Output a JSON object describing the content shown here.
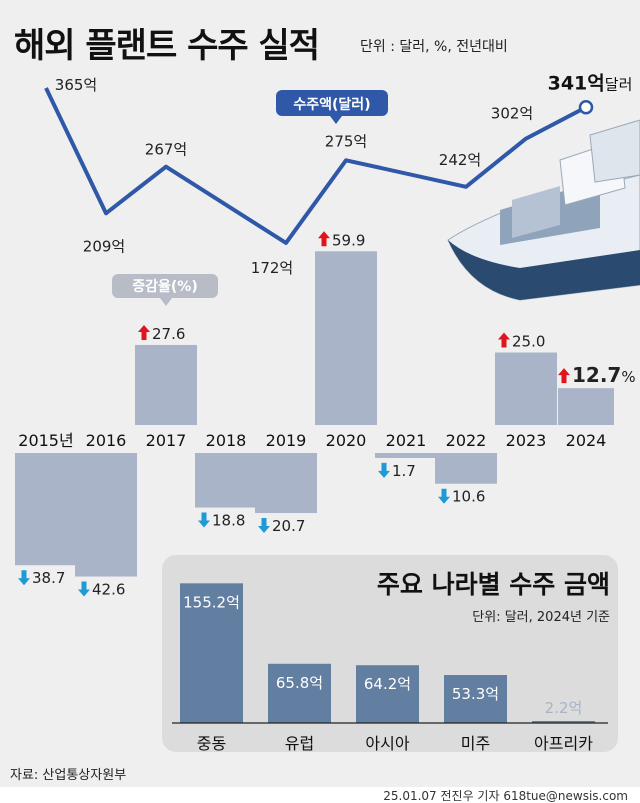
{
  "title": "해외 플랜트 수주 실적",
  "unit": "단위 : 달러, %, 전년대비",
  "source": "자료: 산업통상자원부",
  "credit": "25.01.07 전진우 기자 618tue@newsis.com",
  "colors": {
    "line": "#2f58a8",
    "growth_bar": "#aab4c8",
    "region_bar": "#627ea0",
    "up": "#e0141e",
    "down": "#1e9ad6"
  },
  "chart_data": [
    {
      "type": "line",
      "series_label": "수주액(달러)",
      "categories": [
        "2015년",
        "2016",
        "2017",
        "2018",
        "2019",
        "2020",
        "2021",
        "2022",
        "2023",
        "2024"
      ],
      "values": [
        365,
        209,
        267,
        null,
        172,
        275,
        null,
        242,
        302,
        341
      ],
      "labels": [
        "365억",
        "209억",
        "267억",
        "",
        "172억",
        "275억",
        "",
        "242억",
        "302억",
        "341억"
      ],
      "last_suffix": "달러"
    },
    {
      "type": "bar",
      "series_label": "증감율(%)",
      "categories": [
        "2015년",
        "2016",
        "2017",
        "2018",
        "2019",
        "2020",
        "2021",
        "2022",
        "2023",
        "2024"
      ],
      "values": [
        -38.7,
        -42.6,
        27.6,
        -18.8,
        -20.7,
        59.9,
        -1.7,
        -10.6,
        25.0,
        12.7
      ],
      "labels": [
        "38.7",
        "42.6",
        "27.6",
        "18.8",
        "20.7",
        "59.9",
        "1.7",
        "10.6",
        "25.0",
        "12.7"
      ],
      "last_suffix": "%"
    },
    {
      "type": "bar",
      "title": "주요 나라별 수주 금액",
      "subtitle": "단위: 달러, 2024년 기준",
      "categories": [
        "중동",
        "유럽",
        "아시아",
        "미주",
        "아프리카"
      ],
      "values": [
        155.2,
        65.8,
        64.2,
        53.3,
        2.2
      ],
      "labels": [
        "155.2억",
        "65.8억",
        "64.2억",
        "53.3억",
        "2.2억"
      ]
    }
  ]
}
